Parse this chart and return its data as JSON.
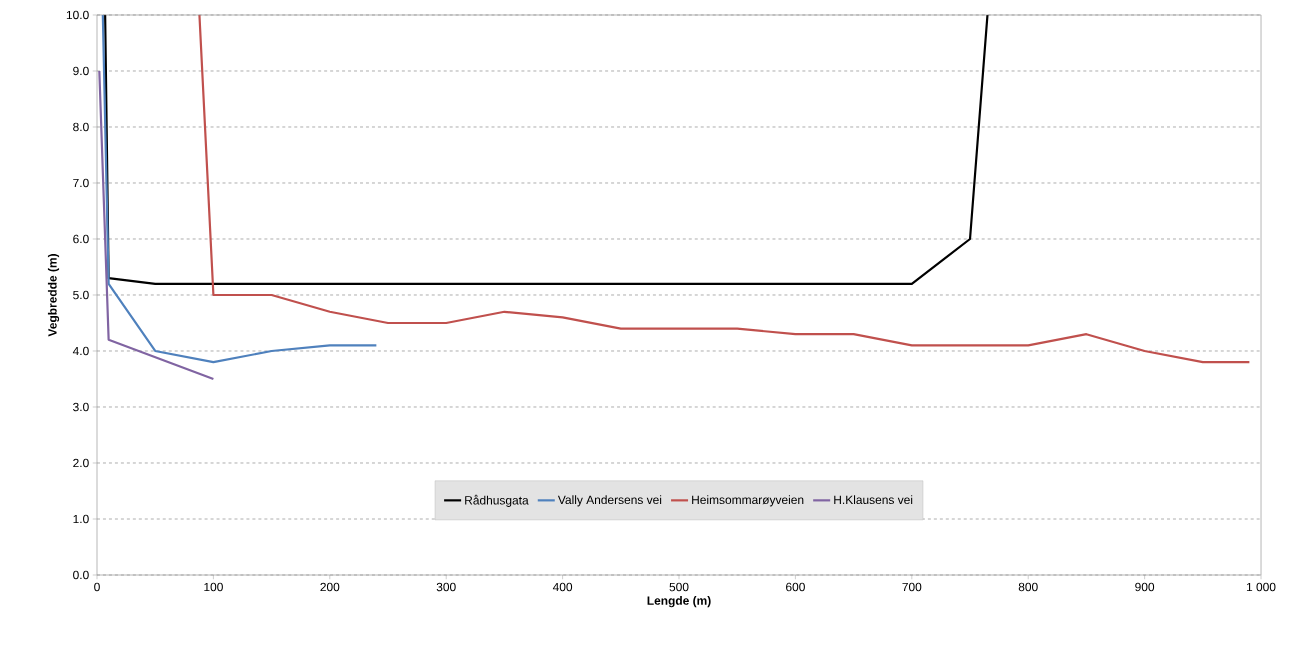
{
  "chart_data": {
    "type": "line",
    "xlabel": "Lengde (m)",
    "ylabel": "Vegbredde (m)",
    "xlim": [
      0,
      1000
    ],
    "ylim": [
      0,
      10
    ],
    "xticks": [
      0,
      100,
      200,
      300,
      400,
      500,
      600,
      700,
      800,
      900,
      {
        "value": 1000,
        "label": "1 000"
      }
    ],
    "yticks": [
      {
        "value": 0,
        "label": "0.0"
      },
      {
        "value": 1,
        "label": "1.0"
      },
      {
        "value": 2,
        "label": "2.0"
      },
      {
        "value": 3,
        "label": "3.0"
      },
      {
        "value": 4,
        "label": "4.0"
      },
      {
        "value": 5,
        "label": "5.0"
      },
      {
        "value": 6,
        "label": "6.0"
      },
      {
        "value": 7,
        "label": "7.0"
      },
      {
        "value": 8,
        "label": "8.0"
      },
      {
        "value": 9,
        "label": "9.0"
      },
      {
        "value": 10,
        "label": "10.0"
      }
    ],
    "grid": "y",
    "legend": "bottom",
    "marker": "none",
    "line_style": "solid",
    "series": [
      {
        "name": "Rådhusgata",
        "color": "#000000",
        "x": [
          7,
          10,
          50,
          700,
          750,
          765
        ],
        "values": [
          10,
          5.3,
          5.2,
          5.2,
          6.0,
          10
        ]
      },
      {
        "name": "Vally Andersens vei",
        "color": "#4f81bd",
        "x": [
          5,
          10,
          50,
          100,
          150,
          200,
          240
        ],
        "values": [
          10,
          5.2,
          4.0,
          3.8,
          4.0,
          4.1,
          4.1
        ]
      },
      {
        "name": "Heimsommarøyveien",
        "color": "#c0504d",
        "x": [
          88,
          100,
          150,
          200,
          250,
          300,
          350,
          400,
          450,
          500,
          550,
          600,
          650,
          700,
          750,
          800,
          850,
          900,
          950,
          990
        ],
        "values": [
          10,
          5.0,
          5.0,
          4.7,
          4.5,
          4.5,
          4.7,
          4.6,
          4.4,
          4.4,
          4.4,
          4.3,
          4.3,
          4.1,
          4.1,
          4.1,
          4.3,
          4.0,
          3.8,
          3.8
        ]
      },
      {
        "name": "H.Klausens vei",
        "color": "#8064a2",
        "x": [
          2,
          10,
          100
        ],
        "values": [
          9.0,
          4.2,
          3.5
        ]
      }
    ]
  }
}
